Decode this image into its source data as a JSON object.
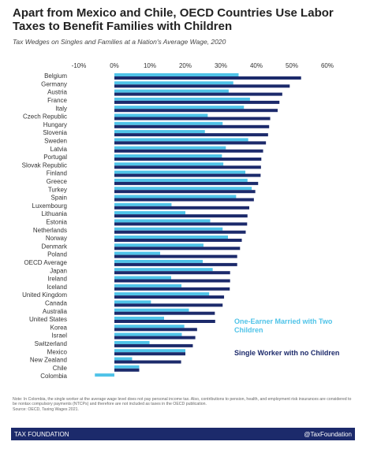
{
  "chart_data": {
    "type": "hbar",
    "title": "Apart from Mexico and Chile, OECD Countries Use Labor Taxes to Benefit Families with Children",
    "subtitle": "Tax Wedges on Singles and Families at a Nation's Average Wage, 2020",
    "categories": [
      "Belgium",
      "Germany",
      "Austria",
      "France",
      "Italy",
      "Czech Republic",
      "Hungary",
      "Slovenia",
      "Sweden",
      "Latvia",
      "Portugal",
      "Slovak Republic",
      "Finland",
      "Greece",
      "Turkey",
      "Spain",
      "Luxembourg",
      "Lithuania",
      "Estonia",
      "Netherlands",
      "Norway",
      "Denmark",
      "Poland",
      "OECD Average",
      "Japan",
      "Ireland",
      "Iceland",
      "United Kingdom",
      "Canada",
      "Australia",
      "United States",
      "Korea",
      "Israel",
      "Switzerland",
      "Mexico",
      "New Zealand",
      "Chile",
      "Colombia"
    ],
    "series": [
      {
        "name": "One-Earner Married with Two Children",
        "color": "#4fc3e8",
        "values": [
          35,
          33.5,
          32.2,
          38.2,
          36.5,
          26.3,
          30.5,
          25.5,
          37.7,
          31.4,
          30.3,
          30.7,
          36.9,
          37.5,
          38.7,
          34.3,
          16.1,
          20,
          27,
          30.5,
          32,
          25.1,
          12.9,
          24.9,
          27.7,
          16,
          18.9,
          26.7,
          10.3,
          21,
          14,
          19.7,
          19,
          9.9,
          20,
          5,
          7,
          -5.5
        ]
      },
      {
        "name": "Single Worker with no Children",
        "color": "#1c2a6b",
        "values": [
          52.6,
          49.4,
          47.3,
          46.5,
          46,
          43.9,
          43.6,
          43.3,
          42.7,
          41.9,
          41.4,
          41.3,
          41.2,
          40.5,
          39.7,
          39.3,
          38,
          37.5,
          37.4,
          37,
          35.9,
          35.4,
          34.6,
          34.6,
          32.6,
          32.6,
          32.5,
          30.9,
          30.5,
          28.3,
          28.4,
          23.3,
          22.8,
          22.1,
          20,
          18.8,
          7,
          0
        ]
      }
    ],
    "xlim": [
      -12,
      62
    ],
    "xticks": [
      {
        "value": -10,
        "label": "-10%"
      },
      {
        "value": 0,
        "label": "0%"
      },
      {
        "value": 10,
        "label": "10%"
      },
      {
        "value": 20,
        "label": "20%"
      },
      {
        "value": 30,
        "label": "30%"
      },
      {
        "value": 40,
        "label": "40%"
      },
      {
        "value": 50,
        "label": "50%"
      },
      {
        "value": 60,
        "label": "60%"
      }
    ],
    "grid": false,
    "note": "Note: In Colombia, the single worker at the average wage level does not pay personal income tax. Also, contributions to pension, health, and employment risk insurances are considered to be nontax compulsory payments (NTCPs) and therefore are not included as taxes in the OECD publication.",
    "source": "Source: OECD, Taxing Wages 2021.",
    "footer_left": "TAX FOUNDATION",
    "footer_right": "@TaxFoundation"
  }
}
